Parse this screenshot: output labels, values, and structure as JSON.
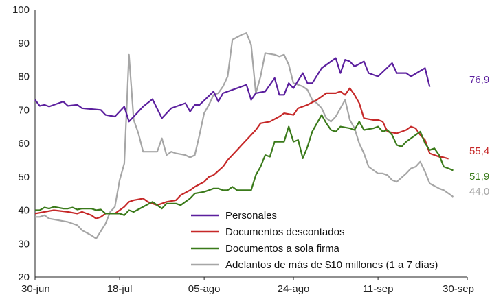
{
  "chart_data": {
    "type": "line",
    "title": "",
    "xlabel": "",
    "ylabel": "",
    "ylim": [
      20,
      100
    ],
    "yticks": [
      20,
      30,
      40,
      50,
      60,
      70,
      80,
      90,
      100
    ],
    "xlim": [
      0,
      92
    ],
    "xticks": [
      {
        "x": 0,
        "label": "30-jun"
      },
      {
        "x": 18,
        "label": "18-jul"
      },
      {
        "x": 36,
        "label": "05-ago"
      },
      {
        "x": 55,
        "label": "24-ago"
      },
      {
        "x": 73,
        "label": "11-sep"
      },
      {
        "x": 92,
        "label": "30-sep"
      }
    ],
    "grid": false,
    "legend_position": "bottom-right",
    "series": [
      {
        "name": "Personales",
        "color": "#5b1f9e",
        "end_label": "76,9",
        "points": [
          [
            0,
            73
          ],
          [
            1,
            71.2
          ],
          [
            2,
            71.5
          ],
          [
            3,
            71
          ],
          [
            6,
            72.5
          ],
          [
            7,
            71.2
          ],
          [
            9,
            71.5
          ],
          [
            10,
            70.5
          ],
          [
            14,
            70
          ],
          [
            15,
            68.5
          ],
          [
            17,
            68
          ],
          [
            19,
            71
          ],
          [
            20,
            66.5
          ],
          [
            21,
            68
          ],
          [
            23,
            71
          ],
          [
            25,
            73.2
          ],
          [
            27,
            67.5
          ],
          [
            29,
            70.5
          ],
          [
            32,
            72
          ],
          [
            33,
            69.5
          ],
          [
            34,
            71.5
          ],
          [
            35,
            71.5
          ],
          [
            38,
            75.5
          ],
          [
            39,
            72.5
          ],
          [
            40,
            75
          ],
          [
            45,
            77.5
          ],
          [
            46,
            73
          ],
          [
            47,
            75
          ],
          [
            49,
            75.5
          ],
          [
            51,
            79.5
          ],
          [
            52,
            74.5
          ],
          [
            53,
            74.5
          ],
          [
            54,
            78
          ],
          [
            55,
            76.5
          ],
          [
            57,
            81
          ],
          [
            58,
            78
          ],
          [
            59,
            78
          ],
          [
            61,
            82.5
          ],
          [
            64,
            85.5
          ],
          [
            65,
            81
          ],
          [
            66,
            85
          ],
          [
            67,
            84.5
          ],
          [
            68,
            83
          ],
          [
            70,
            84.5
          ],
          [
            71,
            81
          ],
          [
            73,
            80
          ],
          [
            76,
            84
          ],
          [
            77,
            81
          ],
          [
            79,
            81
          ],
          [
            80,
            80
          ],
          [
            83,
            82.5
          ],
          [
            84,
            76.9
          ]
        ]
      },
      {
        "name": "Documentos descontados",
        "color": "#c62828",
        "end_label": "55,4",
        "points": [
          [
            0,
            39
          ],
          [
            2,
            39.5
          ],
          [
            4,
            40
          ],
          [
            7,
            39.5
          ],
          [
            9,
            39
          ],
          [
            10,
            39.5
          ],
          [
            12,
            38.5
          ],
          [
            13,
            37.5
          ],
          [
            14,
            38
          ],
          [
            15,
            39
          ],
          [
            17,
            39
          ],
          [
            19,
            41
          ],
          [
            20,
            42.5
          ],
          [
            21,
            43
          ],
          [
            23,
            43.5
          ],
          [
            24,
            42.5
          ],
          [
            26,
            41.5
          ],
          [
            28,
            42.5
          ],
          [
            30,
            43
          ],
          [
            31,
            44.5
          ],
          [
            33,
            46
          ],
          [
            34,
            47
          ],
          [
            36,
            48.5
          ],
          [
            37,
            50
          ],
          [
            38,
            50.5
          ],
          [
            40,
            53
          ],
          [
            41,
            55
          ],
          [
            43,
            58
          ],
          [
            44,
            59.5
          ],
          [
            47,
            64
          ],
          [
            48,
            66
          ],
          [
            50,
            66.5
          ],
          [
            52,
            68
          ],
          [
            53,
            69
          ],
          [
            55,
            68.5
          ],
          [
            56,
            70.5
          ],
          [
            58,
            71.5
          ],
          [
            60,
            73
          ],
          [
            61,
            74
          ],
          [
            62,
            75
          ],
          [
            64,
            75
          ],
          [
            65,
            75.5
          ],
          [
            66,
            74.5
          ],
          [
            67,
            76.5
          ],
          [
            68,
            74.5
          ],
          [
            69,
            72
          ],
          [
            70,
            67.5
          ],
          [
            72,
            67
          ],
          [
            73,
            67
          ],
          [
            74,
            66.5
          ],
          [
            75,
            63.5
          ],
          [
            77,
            63
          ],
          [
            79,
            64
          ],
          [
            80,
            65
          ],
          [
            81,
            64.5
          ],
          [
            82,
            62.5
          ],
          [
            83,
            61
          ],
          [
            84,
            57
          ],
          [
            86,
            56
          ],
          [
            87,
            55.8
          ],
          [
            88,
            55.4
          ]
        ]
      },
      {
        "name": "Documentos a sola firma",
        "color": "#3a7a1a",
        "end_label": "51,9",
        "points": [
          [
            0,
            40
          ],
          [
            1,
            40
          ],
          [
            2,
            40.8
          ],
          [
            3,
            40.5
          ],
          [
            4,
            41
          ],
          [
            6,
            40.5
          ],
          [
            7,
            40.5
          ],
          [
            8,
            40.8
          ],
          [
            9,
            40.2
          ],
          [
            10,
            40.5
          ],
          [
            12,
            40.5
          ],
          [
            13,
            40
          ],
          [
            14,
            40.2
          ],
          [
            15,
            39
          ],
          [
            17,
            39
          ],
          [
            18,
            39
          ],
          [
            19,
            38.5
          ],
          [
            20,
            40
          ],
          [
            21,
            39.5
          ],
          [
            23,
            41
          ],
          [
            25,
            42.5
          ],
          [
            26,
            41.5
          ],
          [
            27,
            40.5
          ],
          [
            28,
            42
          ],
          [
            30,
            42
          ],
          [
            31,
            41.5
          ],
          [
            33,
            43.5
          ],
          [
            34,
            45
          ],
          [
            36,
            45.5
          ],
          [
            37,
            46
          ],
          [
            38,
            46.5
          ],
          [
            39,
            46.5
          ],
          [
            40,
            46
          ],
          [
            41,
            46
          ],
          [
            42,
            47
          ],
          [
            43,
            46
          ],
          [
            46,
            46
          ],
          [
            47,
            50.5
          ],
          [
            48,
            53
          ],
          [
            49,
            56.5
          ],
          [
            50,
            56
          ],
          [
            51,
            60.5
          ],
          [
            53,
            60.5
          ],
          [
            54,
            65
          ],
          [
            55,
            60.5
          ],
          [
            56,
            61
          ],
          [
            57,
            55.5
          ],
          [
            58,
            59
          ],
          [
            59,
            63.5
          ],
          [
            60,
            66
          ],
          [
            61,
            68.5
          ],
          [
            62,
            66
          ],
          [
            63,
            64
          ],
          [
            64,
            63.5
          ],
          [
            65,
            65
          ],
          [
            67,
            64.5
          ],
          [
            68,
            64
          ],
          [
            69,
            66.5
          ],
          [
            70,
            64
          ],
          [
            72,
            64.5
          ],
          [
            73,
            65
          ],
          [
            74,
            63.5
          ],
          [
            75,
            64
          ],
          [
            76,
            62.5
          ],
          [
            77,
            59.5
          ],
          [
            78,
            59
          ],
          [
            79,
            60.5
          ],
          [
            80,
            61.5
          ],
          [
            81,
            62.5
          ],
          [
            82,
            63.5
          ],
          [
            83,
            60
          ],
          [
            84,
            58
          ],
          [
            85,
            58.5
          ],
          [
            86,
            56.5
          ],
          [
            87,
            53
          ],
          [
            88,
            52.5
          ],
          [
            89,
            51.9
          ]
        ]
      },
      {
        "name": "Adelantos de más de $10 millones (1 a 7 días)",
        "color": "#a6a6a6",
        "end_label": "44,0",
        "points": [
          [
            0,
            38
          ],
          [
            1,
            38
          ],
          [
            2,
            38.5
          ],
          [
            3,
            37.5
          ],
          [
            5,
            37
          ],
          [
            7,
            36.5
          ],
          [
            9,
            35.5
          ],
          [
            10,
            34
          ],
          [
            12,
            32.5
          ],
          [
            13,
            31.5
          ],
          [
            15,
            36
          ],
          [
            16,
            39.5
          ],
          [
            17,
            41
          ],
          [
            18,
            49
          ],
          [
            19,
            54
          ],
          [
            20,
            86.5
          ],
          [
            21,
            67
          ],
          [
            22,
            63
          ],
          [
            23,
            57.5
          ],
          [
            25,
            57.5
          ],
          [
            26,
            57.5
          ],
          [
            27,
            61.5
          ],
          [
            28,
            56.5
          ],
          [
            29,
            57.5
          ],
          [
            30,
            57
          ],
          [
            32,
            56.5
          ],
          [
            33,
            55.8
          ],
          [
            34,
            56.5
          ],
          [
            35,
            62.5
          ],
          [
            36,
            69
          ],
          [
            37,
            71.5
          ],
          [
            38,
            74.5
          ],
          [
            39,
            75
          ],
          [
            40,
            77
          ],
          [
            41,
            80
          ],
          [
            42,
            91
          ],
          [
            44,
            92.5
          ],
          [
            45,
            93
          ],
          [
            46,
            89.5
          ],
          [
            47,
            75
          ],
          [
            48,
            80
          ],
          [
            49,
            87
          ],
          [
            51,
            86.5
          ],
          [
            52,
            86
          ],
          [
            53,
            86.5
          ],
          [
            54,
            83.5
          ],
          [
            55,
            78
          ],
          [
            56,
            77.5
          ],
          [
            57,
            77
          ],
          [
            58,
            76
          ],
          [
            59,
            73
          ],
          [
            60,
            72
          ],
          [
            61,
            70.5
          ],
          [
            62,
            67.5
          ],
          [
            63,
            66.5
          ],
          [
            64,
            68
          ],
          [
            66,
            73
          ],
          [
            67,
            67
          ],
          [
            68,
            64.5
          ],
          [
            69,
            60
          ],
          [
            70,
            57
          ],
          [
            71,
            53
          ],
          [
            72,
            52
          ],
          [
            73,
            51
          ],
          [
            74,
            51
          ],
          [
            75,
            50.5
          ],
          [
            76,
            49
          ],
          [
            77,
            48.5
          ],
          [
            79,
            51
          ],
          [
            80,
            52.5
          ],
          [
            81,
            53
          ],
          [
            82,
            54.5
          ],
          [
            83,
            51.5
          ],
          [
            84,
            48
          ],
          [
            86,
            46.5
          ],
          [
            87,
            46
          ],
          [
            88,
            45
          ],
          [
            89,
            44
          ]
        ]
      }
    ]
  }
}
